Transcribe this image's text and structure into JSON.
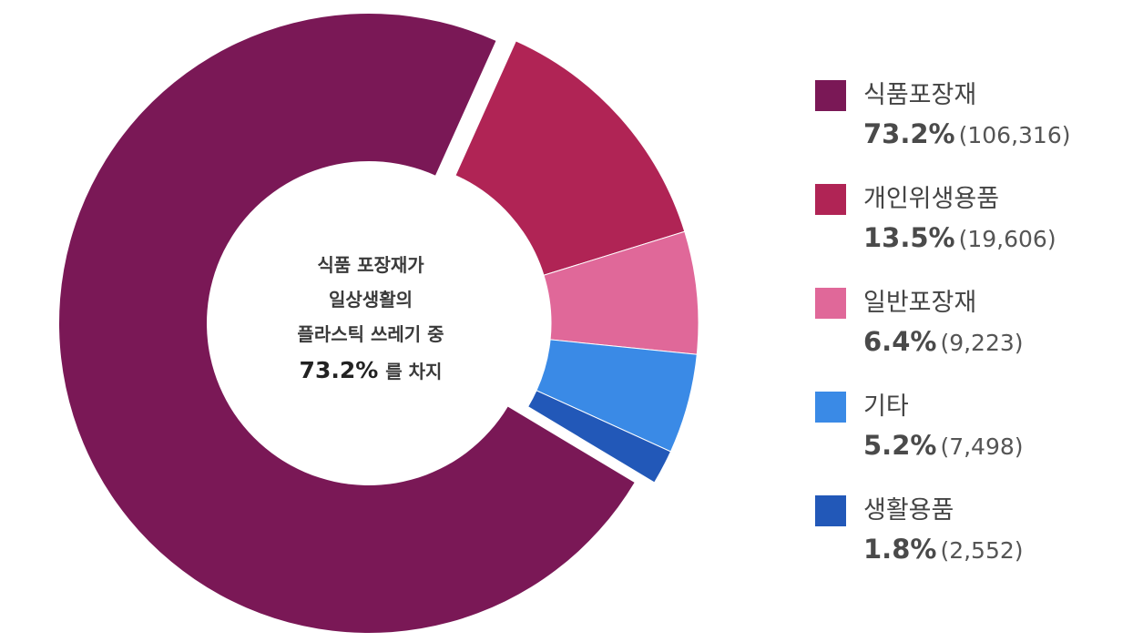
{
  "chart_data": {
    "type": "pie",
    "center_text": {
      "line1": "식품 포장재가",
      "line2": "일상생활의",
      "line3": "플라스틱 쓰레기 중",
      "pct": "73.2%",
      "suffix": "를 차지"
    },
    "slices": [
      {
        "label": "식품포장재",
        "percent_label": "73.2%",
        "count_label": "(106,316)",
        "percent": 73.2,
        "count": 106316,
        "color": "#7a1856",
        "exploded": false
      },
      {
        "label": "개인위생용품",
        "percent_label": "13.5%",
        "count_label": "(19,606)",
        "percent": 13.5,
        "count": 19606,
        "color": "#b02455",
        "exploded": true
      },
      {
        "label": "일반포장재",
        "percent_label": "6.4%",
        "count_label": "(9,223)",
        "percent": 6.4,
        "count": 9223,
        "color": "#e06899",
        "exploded": true
      },
      {
        "label": "기타",
        "percent_label": "5.2%",
        "count_label": "(7,498)",
        "percent": 5.2,
        "count": 7498,
        "color": "#3a8ae6",
        "exploded": true
      },
      {
        "label": "생활용품",
        "percent_label": "1.8%",
        "count_label": "(2,552)",
        "percent": 1.8,
        "count": 2552,
        "color": "#2258b8",
        "exploded": true
      }
    ],
    "legend_position": "right"
  }
}
